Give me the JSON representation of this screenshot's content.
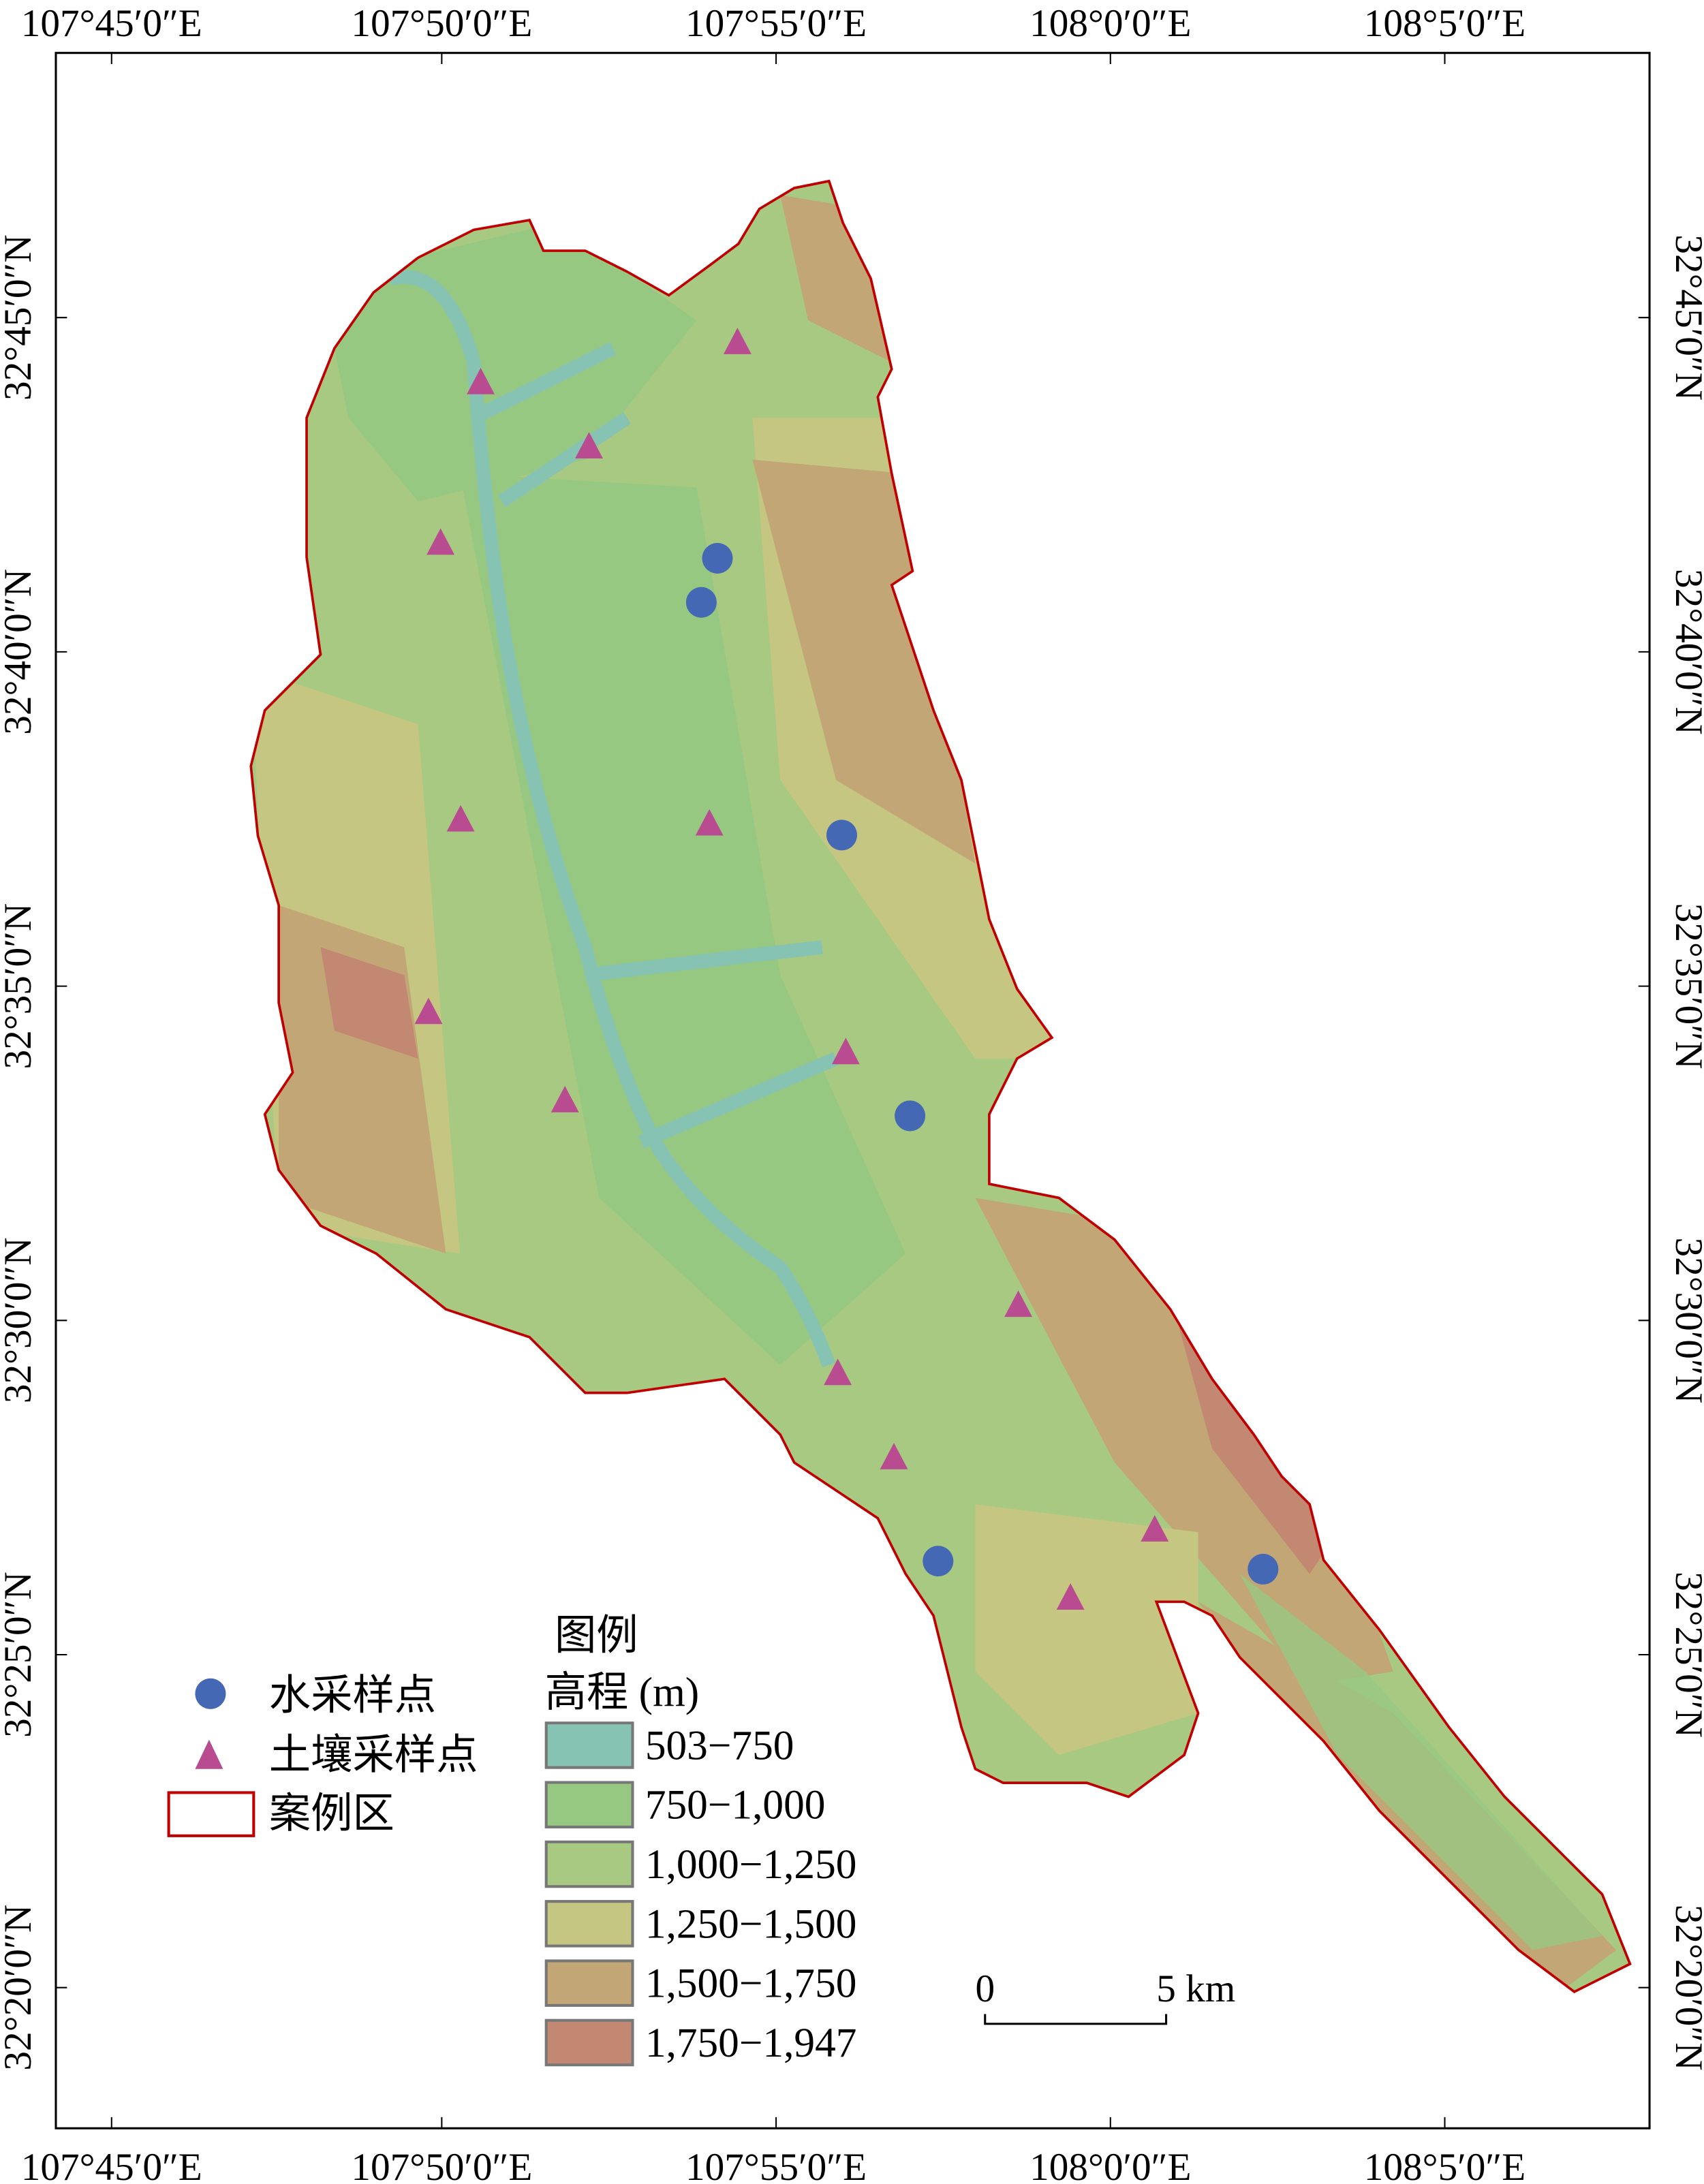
{
  "map": {
    "x_ticks": [
      "107°45′0″E",
      "107°50′0″E",
      "107°55′0″E",
      "108°0′0″E",
      "108°5′0″E"
    ],
    "y_ticks": [
      "32°45′0″N",
      "32°40′0″N",
      "32°35′0″N",
      "32°30′0″N",
      "32°25′0″N",
      "32°20′0″N"
    ],
    "boundary_color": "#c00000",
    "water_samples": [
      {
        "lon": 107.901,
        "lat": 32.69
      },
      {
        "lon": 107.897,
        "lat": 32.679
      },
      {
        "lon": 107.932,
        "lat": 32.621
      },
      {
        "lon": 107.949,
        "lat": 32.551
      },
      {
        "lon": 107.956,
        "lat": 32.44
      },
      {
        "lon": 108.037,
        "lat": 32.438
      }
    ],
    "soil_samples": [
      {
        "lon": 107.842,
        "lat": 32.734
      },
      {
        "lon": 107.869,
        "lat": 32.718
      },
      {
        "lon": 107.906,
        "lat": 32.744
      },
      {
        "lon": 107.832,
        "lat": 32.694
      },
      {
        "lon": 107.837,
        "lat": 32.625
      },
      {
        "lon": 107.899,
        "lat": 32.624
      },
      {
        "lon": 107.829,
        "lat": 32.577
      },
      {
        "lon": 107.933,
        "lat": 32.567
      },
      {
        "lon": 107.863,
        "lat": 32.555
      },
      {
        "lon": 107.976,
        "lat": 32.504
      },
      {
        "lon": 107.931,
        "lat": 32.487
      },
      {
        "lon": 107.945,
        "lat": 32.466
      },
      {
        "lon": 108.01,
        "lat": 32.448
      },
      {
        "lon": 107.989,
        "lat": 32.431
      }
    ],
    "water_color": "#4468b4",
    "soil_color": "#b94b90"
  },
  "legend": {
    "title": "图例",
    "elevation_title": "高程 (m)",
    "water_label": "水采样点",
    "soil_label": "土壤采样点",
    "area_label": "案例区",
    "classes": [
      {
        "label": "503−750",
        "color": "#86c3b3"
      },
      {
        "label": "750−1,000",
        "color": "#97c882"
      },
      {
        "label": "1,000−1,250",
        "color": "#a8c981"
      },
      {
        "label": "1,250−1,500",
        "color": "#c5c681"
      },
      {
        "label": "1,500−1,750",
        "color": "#c2a676"
      },
      {
        "label": "1,750−1,947",
        "color": "#c28871"
      }
    ]
  },
  "scale_bar": {
    "start": "0",
    "end": "5 km"
  }
}
